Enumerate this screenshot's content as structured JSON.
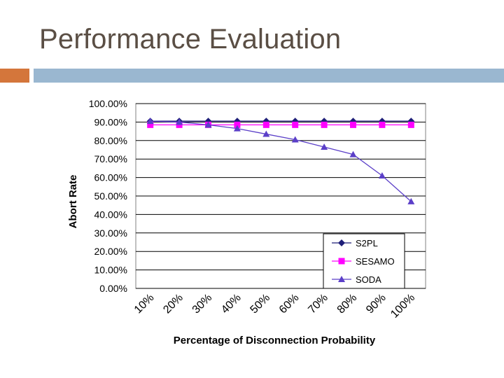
{
  "slide": {
    "title": "Performance Evaluation"
  },
  "colors": {
    "s2pl": "#1e1e78",
    "sesamo": "#ff00ff",
    "soda": "#5b3fc8",
    "accent_orange": "#d4763b",
    "accent_blue": "#9ab7d0"
  },
  "chart_data": {
    "type": "line",
    "title": "",
    "xlabel": "Percentage of Disconnection Probability",
    "ylabel": "Abort Rate",
    "categories": [
      "10%",
      "20%",
      "30%",
      "40%",
      "50%",
      "60%",
      "70%",
      "80%",
      "90%",
      "100%"
    ],
    "y_ticks": [
      "0.00%",
      "10.00%",
      "20.00%",
      "30.00%",
      "40.00%",
      "50.00%",
      "60.00%",
      "70.00%",
      "80.00%",
      "90.00%",
      "100.00%"
    ],
    "ylim": [
      0,
      100
    ],
    "grid": true,
    "legend_position": "bottom-right",
    "series": [
      {
        "name": "S2PL",
        "marker": "diamond",
        "values": [
          90.5,
          90.5,
          90.5,
          90.5,
          90.5,
          90.5,
          90.5,
          90.5,
          90.5,
          90.5
        ]
      },
      {
        "name": "SESAMO",
        "marker": "square",
        "values": [
          88.5,
          88.5,
          88.5,
          88.5,
          88.5,
          88.5,
          88.5,
          88.5,
          88.5,
          88.5
        ]
      },
      {
        "name": "SODA",
        "marker": "triangle",
        "values": [
          90.5,
          90,
          88.5,
          86.5,
          83.5,
          80.5,
          76.5,
          72.5,
          61,
          47
        ]
      }
    ]
  }
}
